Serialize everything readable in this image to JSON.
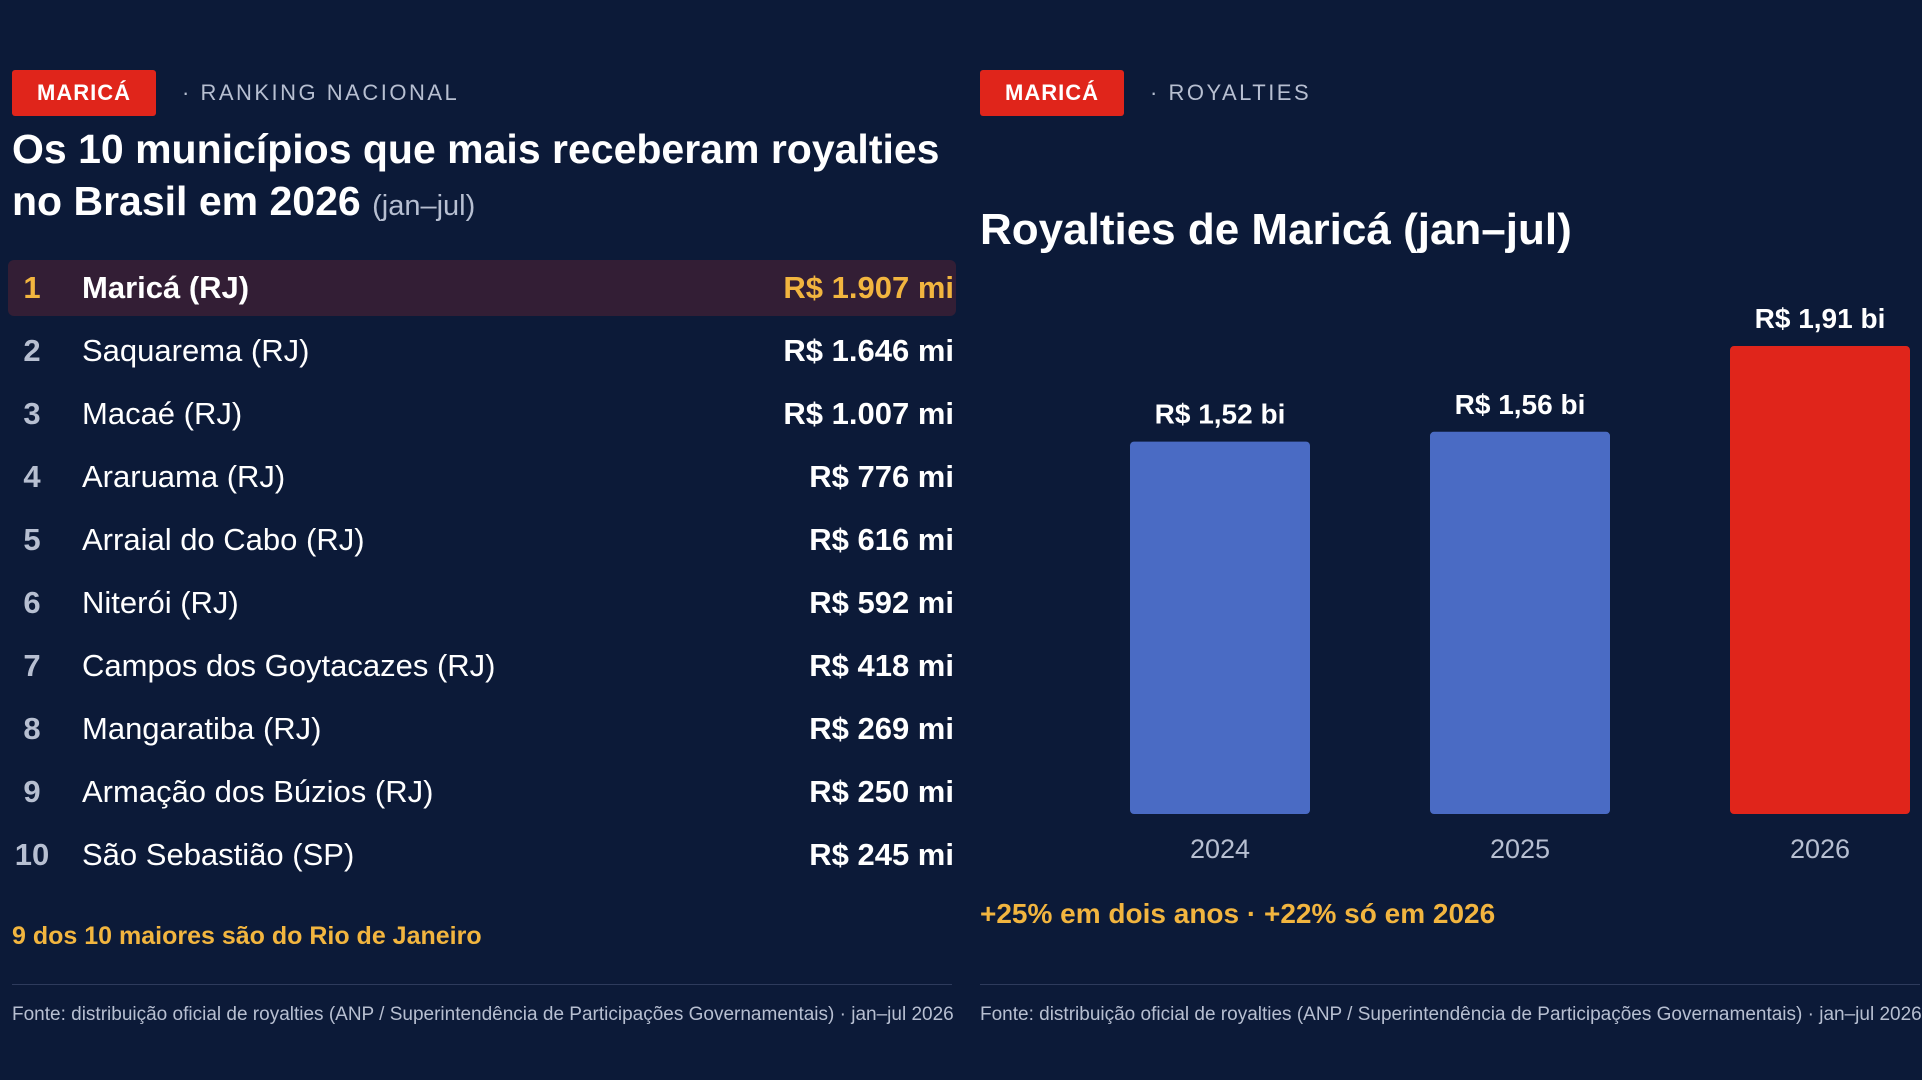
{
  "left": {
    "tag": "MARICÁ",
    "tag_sub": "· RANKING NACIONAL",
    "title": "Os 10 municípios que mais receberam royalties no Brasil em 2026",
    "title_note": "(jan–jul)",
    "ranking": [
      {
        "rank": "1",
        "name": "Maricá (RJ)",
        "value": "R$ 1.907 mi"
      },
      {
        "rank": "2",
        "name": "Saquarema (RJ)",
        "value": "R$ 1.646 mi"
      },
      {
        "rank": "3",
        "name": "Macaé (RJ)",
        "value": "R$ 1.007 mi"
      },
      {
        "rank": "4",
        "name": "Araruama (RJ)",
        "value": "R$ 776 mi"
      },
      {
        "rank": "5",
        "name": "Arraial do Cabo (RJ)",
        "value": "R$ 616 mi"
      },
      {
        "rank": "6",
        "name": "Niterói (RJ)",
        "value": "R$ 592 mi"
      },
      {
        "rank": "7",
        "name": "Campos dos Goytacazes (RJ)",
        "value": "R$ 418 mi"
      },
      {
        "rank": "8",
        "name": "Mangaratiba (RJ)",
        "value": "R$ 269 mi"
      },
      {
        "rank": "9",
        "name": "Armação dos Búzios (RJ)",
        "value": "R$ 250 mi"
      },
      {
        "rank": "10",
        "name": "São Sebastião (SP)",
        "value": "R$ 245 mi"
      }
    ],
    "footnote": "9 dos 10 maiores são do Rio de Janeiro",
    "source": "Fonte: distribuição oficial de royalties (ANP / Superintendência de Participações Governamentais) · jan–jul 2026"
  },
  "right": {
    "tag": "MARICÁ",
    "tag_sub": "· ROYALTIES",
    "highlight": "+25% em dois anos · +22% só em 2026",
    "source": "Fonte: distribuição oficial de royalties (ANP / Superintendência de Participações Governamentais) · jan–jul 2026"
  },
  "colors": {
    "background": "#0c1a38",
    "accent_red": "#e0251b",
    "bar_blue": "#4a6bc4",
    "gold": "#f2b53f",
    "highlight_row": "#331e35"
  },
  "chart_data": {
    "type": "bar",
    "title": "Royalties de Maricá (jan–jul)",
    "categories": [
      "2024",
      "2025",
      "2026"
    ],
    "values": [
      1.52,
      1.56,
      1.91
    ],
    "value_labels": [
      "R$ 1,52 bi",
      "R$ 1,56 bi",
      "R$ 1,91 bi"
    ],
    "bar_colors": [
      "#4a6bc4",
      "#4a6bc4",
      "#e0251b"
    ],
    "ylim": [
      0,
      2.0
    ],
    "grid": false,
    "legend": "none"
  }
}
